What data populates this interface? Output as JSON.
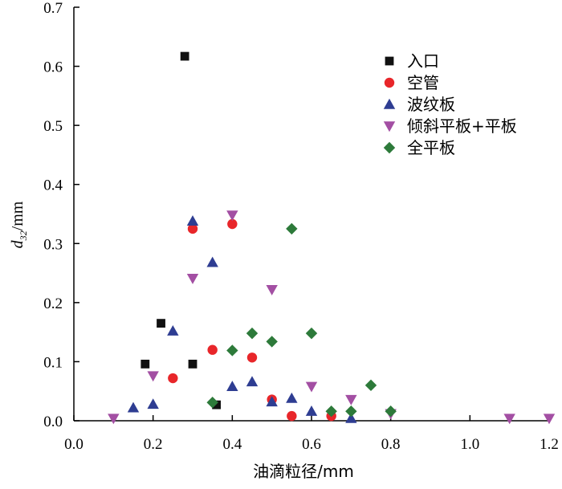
{
  "chart_data": {
    "type": "scatter",
    "xlabel": "油滴粒径/mm",
    "ylabel": {
      "main": "d",
      "sub": "32",
      "unit": "/mm"
    },
    "xlim": [
      0.0,
      1.2
    ],
    "ylim": [
      0.0,
      0.7
    ],
    "x_ticks": [
      "0.0",
      "0.2",
      "0.4",
      "0.6",
      "0.8",
      "1.0",
      "1.2"
    ],
    "y_ticks": [
      "0.0",
      "0.1",
      "0.2",
      "0.3",
      "0.4",
      "0.5",
      "0.6",
      "0.7"
    ],
    "grid": false,
    "legend_position": "top-right",
    "series": [
      {
        "name": "入口",
        "marker": "square",
        "color": "#111111",
        "points": [
          [
            0.18,
            0.096
          ],
          [
            0.22,
            0.165
          ],
          [
            0.28,
            0.617
          ],
          [
            0.3,
            0.096
          ],
          [
            0.36,
            0.027
          ]
        ]
      },
      {
        "name": "空管",
        "marker": "circle",
        "color": "#e8262a",
        "points": [
          [
            0.25,
            0.072
          ],
          [
            0.3,
            0.325
          ],
          [
            0.35,
            0.12
          ],
          [
            0.4,
            0.333
          ],
          [
            0.45,
            0.107
          ],
          [
            0.5,
            0.036
          ],
          [
            0.55,
            0.008
          ],
          [
            0.65,
            0.008
          ]
        ]
      },
      {
        "name": "波纹板",
        "marker": "triangle-up",
        "color": "#2e3d92",
        "points": [
          [
            0.15,
            0.022
          ],
          [
            0.2,
            0.028
          ],
          [
            0.25,
            0.152
          ],
          [
            0.3,
            0.338
          ],
          [
            0.35,
            0.268
          ],
          [
            0.4,
            0.058
          ],
          [
            0.45,
            0.066
          ],
          [
            0.5,
            0.032
          ],
          [
            0.55,
            0.038
          ],
          [
            0.6,
            0.016
          ],
          [
            0.7,
            0.004
          ]
        ]
      },
      {
        "name": "倾斜平板+平板",
        "marker": "triangle-down",
        "color": "#a34fa3",
        "points": [
          [
            0.1,
            0.004
          ],
          [
            0.2,
            0.076
          ],
          [
            0.3,
            0.241
          ],
          [
            0.4,
            0.348
          ],
          [
            0.5,
            0.222
          ],
          [
            0.6,
            0.058
          ],
          [
            0.7,
            0.036
          ],
          [
            0.8,
            0.012
          ],
          [
            1.1,
            0.004
          ],
          [
            1.2,
            0.004
          ]
        ]
      },
      {
        "name": "全平板",
        "marker": "diamond",
        "color": "#2d7a3a",
        "points": [
          [
            0.35,
            0.031
          ],
          [
            0.4,
            0.119
          ],
          [
            0.45,
            0.148
          ],
          [
            0.5,
            0.134
          ],
          [
            0.55,
            0.325
          ],
          [
            0.6,
            0.148
          ],
          [
            0.65,
            0.016
          ],
          [
            0.7,
            0.016
          ],
          [
            0.75,
            0.06
          ],
          [
            0.8,
            0.016
          ]
        ]
      }
    ]
  }
}
